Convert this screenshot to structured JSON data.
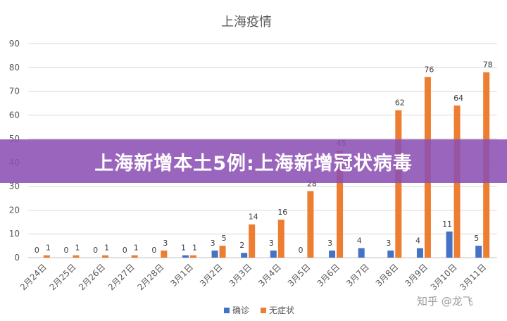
{
  "chart_data": {
    "type": "bar",
    "title": "上海疫情",
    "categories": [
      "2月24日",
      "2月25日",
      "2月26日",
      "2月27日",
      "2月28日",
      "3月1日",
      "3月2日",
      "3月3日",
      "3月4日",
      "3月5日",
      "3月6日",
      "3月7日",
      "3月8日",
      "3月9日",
      "3月10日",
      "3月11日"
    ],
    "series": [
      {
        "name": "确诊",
        "color": "#4472c4",
        "values": [
          0,
          0,
          0,
          0,
          0,
          1,
          3,
          2,
          3,
          0,
          3,
          4,
          3,
          4,
          11,
          5
        ]
      },
      {
        "name": "无症状",
        "color": "#ed7d31",
        "values": [
          1,
          1,
          1,
          1,
          3,
          1,
          5,
          14,
          16,
          28,
          45,
          null,
          62,
          76,
          64,
          78
        ]
      }
    ],
    "ylim": [
      0,
      90
    ],
    "yticks": [
      0,
      10,
      20,
      30,
      40,
      50,
      60,
      70,
      80,
      90
    ],
    "grid": true,
    "legend": "bottom"
  },
  "banner": {
    "text": "上海新增本土5例:上海新增冠状病毒"
  },
  "watermark": {
    "text": "知乎 @龙飞"
  }
}
